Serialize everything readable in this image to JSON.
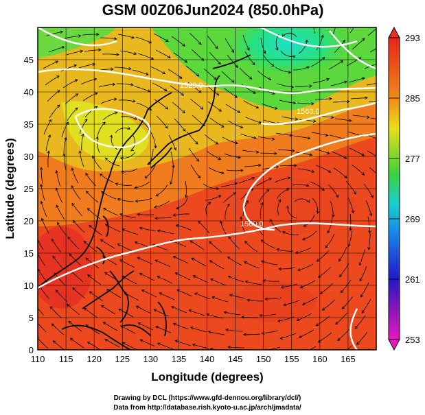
{
  "title": "GSM 00Z06Jun2024 (850.0hPa)",
  "xlabel": "Longitude (degrees)",
  "ylabel": "Latitude  (degrees)",
  "x_ticks": [
    "110",
    "115",
    "120",
    "125",
    "130",
    "135",
    "140",
    "145",
    "150",
    "155",
    "160",
    "165"
  ],
  "y_ticks": [
    "0",
    "5",
    "10",
    "15",
    "20",
    "25",
    "30",
    "35",
    "40",
    "45"
  ],
  "colorbar": {
    "labels": [
      "293",
      "285",
      "277",
      "269",
      "261",
      "253"
    ],
    "min": 253,
    "max": 293
  },
  "contour_labels": [
    "1520.0",
    "1560.0",
    "1560.0"
  ],
  "credits": {
    "line1": "Drawing by DCL (https://www.gfd-dennou.org/library/dcl/)",
    "line2": "Data from http://database.rish.kyoto-u.ac.jp/arch/jmadata/"
  },
  "colors": {
    "warm": "#e8301c",
    "orange": "#f07a1c",
    "yellow": "#e8d41c",
    "green": "#44d83c",
    "cyan": "#1cd8b8"
  }
}
